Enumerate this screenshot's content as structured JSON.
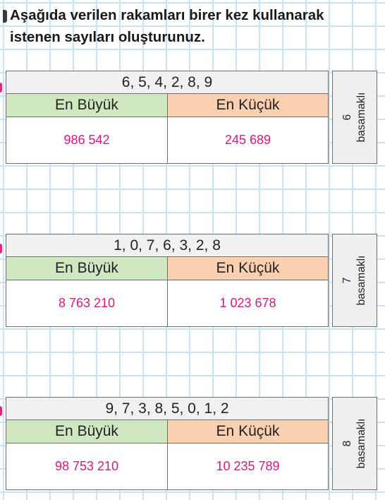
{
  "instruction": {
    "line1": "Aşağıda verilen rakamları birer kez kullanarak",
    "line2": "istenen sayıları oluşturunuz."
  },
  "exercises": [
    {
      "digits": "6, 5, 4, 2, 8, 9",
      "max_label": "En Büyük",
      "min_label": "En Küçük",
      "max_value": "986 542",
      "min_value": "245 689",
      "place_count": "6",
      "place_word": "basamaklı"
    },
    {
      "digits": "1, 0, 7, 6, 3, 2, 8",
      "max_label": "En Büyük",
      "min_label": "En Küçük",
      "max_value": "8 763 210",
      "min_value": "1 023 678",
      "place_count": "7",
      "place_word": "basamaklı"
    },
    {
      "digits": "9, 7, 3, 8, 5, 0, 1, 2",
      "max_label": "En Büyük",
      "min_label": "En Küçük",
      "max_value": "98 753 210",
      "min_value": "10 235 789",
      "place_count": "8",
      "place_word": "basamaklı"
    }
  ],
  "colors": {
    "grid_line": "#c6e3f6",
    "max_header_bg": "#cfe8c2",
    "min_header_bg": "#fbd0b0",
    "answer_text": "#d6197c",
    "side_tick": "#e0267a"
  }
}
